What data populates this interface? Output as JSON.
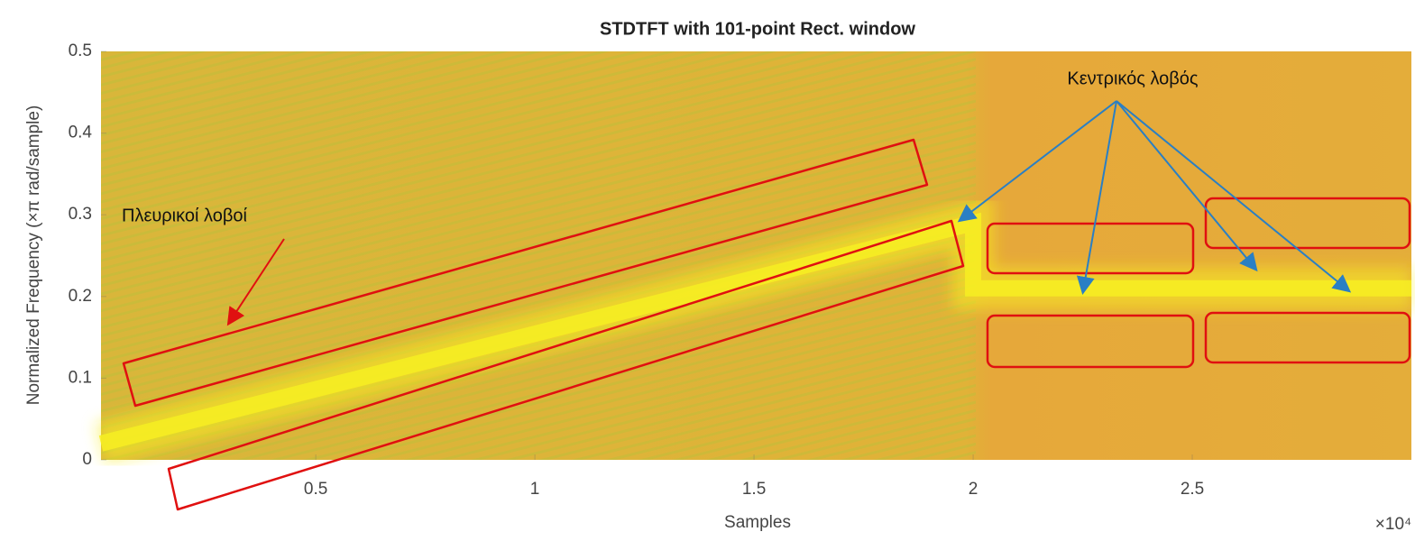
{
  "chart_data": {
    "type": "spectrogram",
    "title": "STDTFT with 101-point Rect. window",
    "x_label": "Samples",
    "y_label": "Normalized Frequency  (×π rad/sample)",
    "x_exponent_label": "×10⁴",
    "x": [
      0.01,
      2.0,
      2.0,
      3.0
    ],
    "values": [
      0.02,
      0.29,
      0.21,
      0.21
    ],
    "color": "#f7ee22",
    "xlim": [
      0.01,
      3.0
    ],
    "xticks": [
      0.5,
      1,
      1.5,
      2,
      2.5
    ],
    "ylim": [
      0,
      0.5
    ],
    "yticks": [
      0,
      0.1,
      0.2,
      0.3,
      0.4,
      0.5
    ],
    "annotations": [
      "Κεντρικός λοβός",
      "Πλευρικοί λοβοί"
    ]
  }
}
